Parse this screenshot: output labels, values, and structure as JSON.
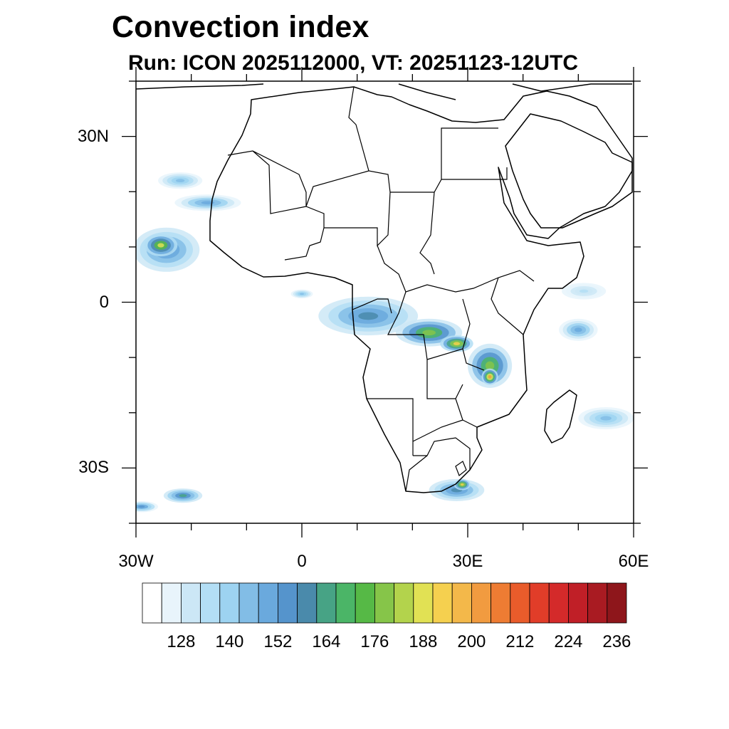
{
  "title": "Convection index",
  "subtitle": "Run: ICON 2025112000,  VT: 20251123-12UTC",
  "map": {
    "lon_range": [
      -30,
      60
    ],
    "lat_range": [
      -40,
      40
    ],
    "lat_labels": [
      {
        "lat": 30,
        "text": "30N"
      },
      {
        "lat": 0,
        "text": "0"
      },
      {
        "lat": -30,
        "text": "30S"
      }
    ],
    "lon_labels": [
      {
        "lon": -30,
        "text": "30W"
      },
      {
        "lon": 0,
        "text": "0"
      },
      {
        "lon": 30,
        "text": "30E"
      },
      {
        "lon": 60,
        "text": "60E"
      }
    ]
  },
  "colorbar": {
    "colors": [
      "#ffffff",
      "#e8f4fb",
      "#cce7f6",
      "#b3def5",
      "#9dd3f1",
      "#82bde6",
      "#6aa9dd",
      "#5594cc",
      "#4a8aab",
      "#47a385",
      "#4bb567",
      "#56b946",
      "#86c549",
      "#b3d34c",
      "#e1e154",
      "#f5d04f",
      "#f3b84a",
      "#f19b40",
      "#ee7c33",
      "#e95c2b",
      "#e13d29",
      "#d42a2a",
      "#c01f27",
      "#a91b22",
      "#8e161b"
    ],
    "tick_labels": [
      "128",
      "140",
      "152",
      "164",
      "176",
      "188",
      "200",
      "212",
      "224",
      "236"
    ]
  },
  "convection_cells": [
    {
      "lon": -24.5,
      "lat": 9.5,
      "rx": 6,
      "ry": 4,
      "level": 8
    },
    {
      "lon": -25.5,
      "lat": 10.3,
      "rx": 3,
      "ry": 2,
      "level": 14
    },
    {
      "lon": -17,
      "lat": 18,
      "rx": 6,
      "ry": 1.5,
      "level": 6
    },
    {
      "lon": -22,
      "lat": 22,
      "rx": 4,
      "ry": 1.5,
      "level": 5
    },
    {
      "lon": 12,
      "lat": -2.5,
      "rx": 9,
      "ry": 3.5,
      "level": 8
    },
    {
      "lon": 23,
      "lat": -5.5,
      "rx": 6,
      "ry": 2.5,
      "level": 12
    },
    {
      "lon": 28,
      "lat": -7.5,
      "rx": 3,
      "ry": 1.5,
      "level": 15
    },
    {
      "lon": 34,
      "lat": -11.5,
      "rx": 4,
      "ry": 4,
      "level": 12
    },
    {
      "lon": 34,
      "lat": -13.5,
      "rx": 1.5,
      "ry": 1.5,
      "level": 17
    },
    {
      "lon": 28,
      "lat": -34,
      "rx": 5,
      "ry": 2,
      "level": 8
    },
    {
      "lon": 29,
      "lat": -33,
      "rx": 1.5,
      "ry": 1,
      "level": 15
    },
    {
      "lon": -21.5,
      "lat": -35,
      "rx": 3.5,
      "ry": 1.3,
      "level": 9
    },
    {
      "lon": 50,
      "lat": -5,
      "rx": 3.5,
      "ry": 2,
      "level": 6
    },
    {
      "lon": 55,
      "lat": -21,
      "rx": 5,
      "ry": 2,
      "level": 5
    },
    {
      "lon": -29,
      "lat": -37,
      "rx": 3,
      "ry": 1,
      "level": 7
    },
    {
      "lon": 0,
      "lat": 1.5,
      "rx": 2,
      "ry": 0.8,
      "level": 5
    },
    {
      "lon": 51,
      "lat": 2,
      "rx": 4,
      "ry": 1.5,
      "level": 3
    }
  ]
}
